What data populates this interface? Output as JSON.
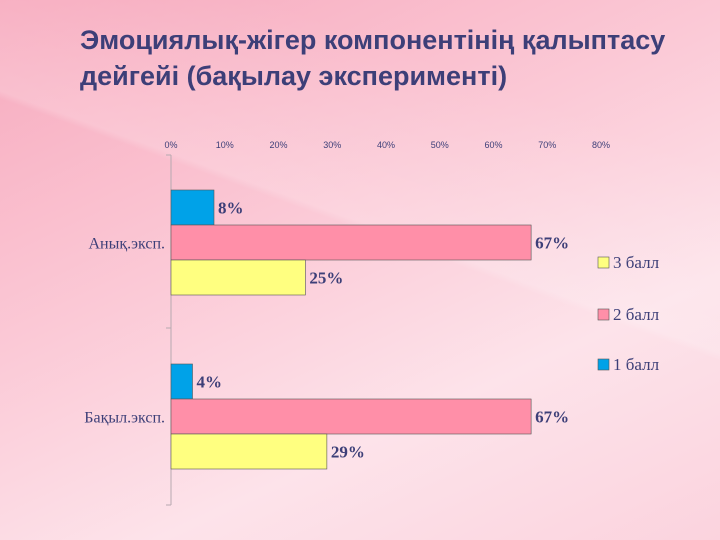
{
  "slide": {
    "title": "Эмоциялық-жігер компонентінің қалыптасу дейгейі (бақылау эксперименті)"
  },
  "chart_data": {
    "type": "bar",
    "orientation": "horizontal",
    "categories": [
      "Анық.эксп.",
      "Бақыл.эксп."
    ],
    "series": [
      {
        "name": "1 балл",
        "values": [
          8,
          4
        ],
        "color": "#00a2e8"
      },
      {
        "name": "2 балл",
        "values": [
          67,
          67
        ],
        "color": "#ff8fa8"
      },
      {
        "name": "3 балл",
        "values": [
          25,
          29
        ],
        "color": "#ffff80"
      }
    ],
    "data_labels": [
      [
        "8%",
        "67%",
        "25%"
      ],
      [
        "4%",
        "67%",
        "29%"
      ]
    ],
    "xlim": [
      0,
      80
    ],
    "xticks": [
      "0%",
      "10%",
      "20%",
      "30%",
      "40%",
      "50%",
      "60%",
      "70%",
      "80%"
    ],
    "x_axis_position": "top",
    "legend": {
      "placement": "right",
      "order": [
        "3 балл",
        "2 балл",
        "1 балл"
      ]
    },
    "grid": false
  }
}
